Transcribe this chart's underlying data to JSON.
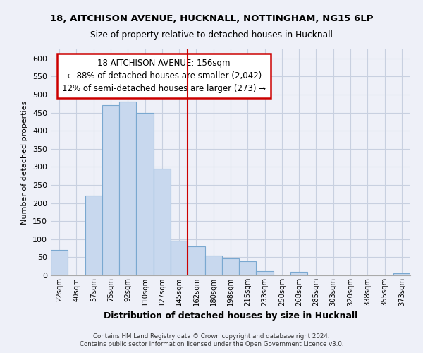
{
  "title_line1": "18, AITCHISON AVENUE, HUCKNALL, NOTTINGHAM, NG15 6LP",
  "title_line2": "Size of property relative to detached houses in Hucknall",
  "xlabel": "Distribution of detached houses by size in Hucknall",
  "ylabel": "Number of detached properties",
  "bar_labels": [
    "22sqm",
    "40sqm",
    "57sqm",
    "75sqm",
    "92sqm",
    "110sqm",
    "127sqm",
    "145sqm",
    "162sqm",
    "180sqm",
    "198sqm",
    "215sqm",
    "233sqm",
    "250sqm",
    "268sqm",
    "285sqm",
    "303sqm",
    "320sqm",
    "338sqm",
    "355sqm",
    "373sqm"
  ],
  "bar_heights": [
    70,
    0,
    220,
    470,
    480,
    450,
    295,
    95,
    80,
    55,
    47,
    40,
    12,
    0,
    10,
    0,
    0,
    0,
    0,
    0,
    5
  ],
  "bar_color": "#c8d8ee",
  "bar_edge_color": "#7aa8d0",
  "vline_color": "#cc0000",
  "annotation_title": "18 AITCHISON AVENUE: 156sqm",
  "annotation_line1": "← 88% of detached houses are smaller (2,042)",
  "annotation_line2": "12% of semi-detached houses are larger (273) →",
  "annotation_box_facecolor": "white",
  "annotation_box_edgecolor": "#cc0000",
  "ylim": [
    0,
    625
  ],
  "yticks": [
    0,
    50,
    100,
    150,
    200,
    250,
    300,
    350,
    400,
    450,
    500,
    550,
    600
  ],
  "footnote1": "Contains HM Land Registry data © Crown copyright and database right 2024.",
  "footnote2": "Contains public sector information licensed under the Open Government Licence v3.0.",
  "grid_color": "#c8d0e0",
  "bg_color": "#eef0f8",
  "plot_bg_color": "#eef0f8",
  "vline_pos": 7.5
}
